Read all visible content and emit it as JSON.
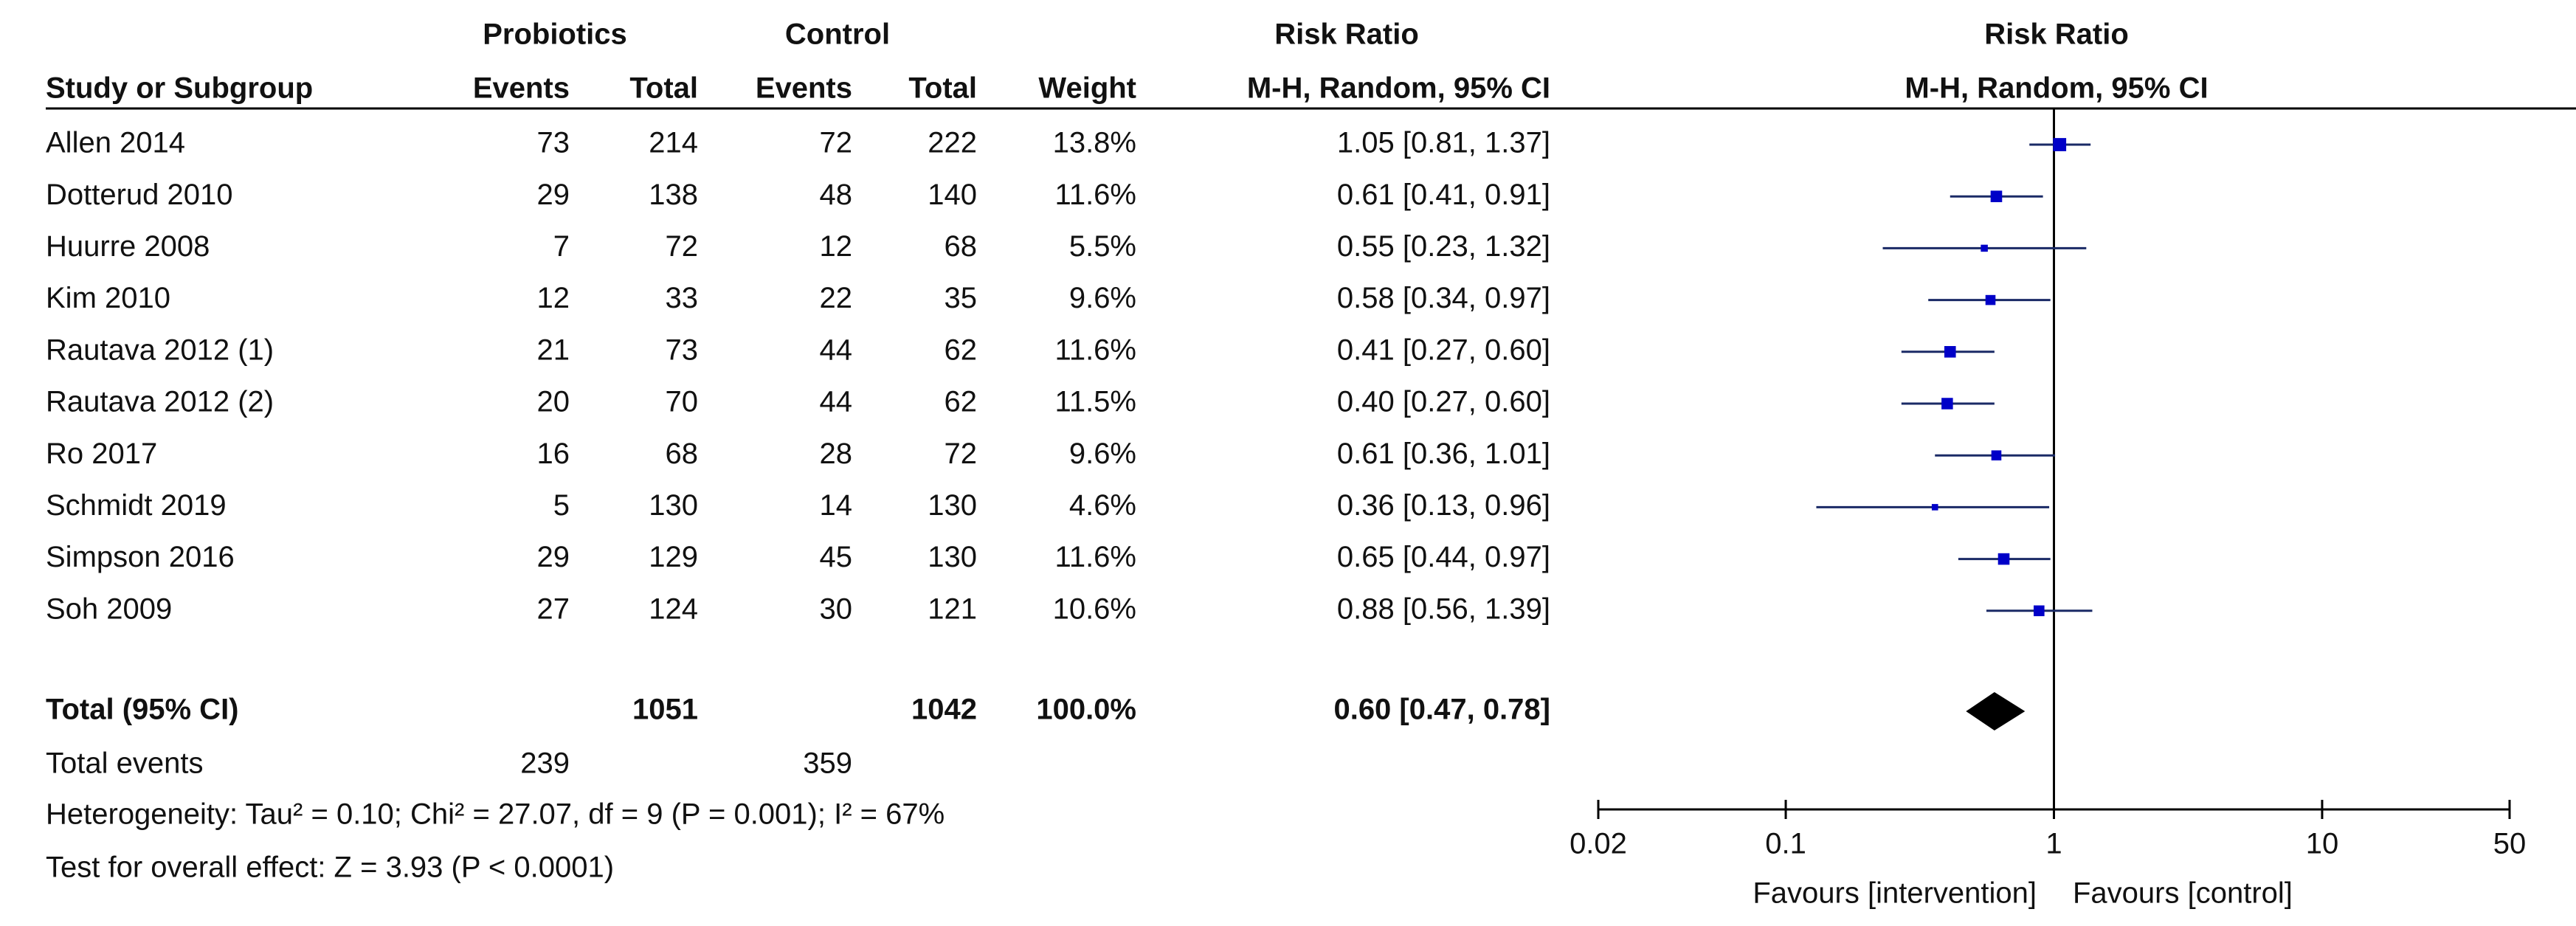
{
  "chart_data": {
    "type": "forest",
    "header": {
      "probiotics": "Probiotics",
      "control": "Control",
      "risk_ratio_table": "Risk Ratio",
      "risk_ratio_plot": "Risk Ratio",
      "study": "Study or Subgroup",
      "p_events": "Events",
      "p_total": "Total",
      "c_events": "Events",
      "c_total": "Total",
      "weight": "Weight",
      "method_table": "M-H, Random, 95% CI",
      "method_plot": "M-H, Random, 95% CI"
    },
    "studies": [
      {
        "study": "Allen 2014",
        "p_events": 73,
        "p_total": 214,
        "c_events": 72,
        "c_total": 222,
        "weight": 13.8,
        "weight_label": "13.8%",
        "ci_label": "1.05 [0.81, 1.37]",
        "rr": 1.05,
        "lo": 0.81,
        "hi": 1.37
      },
      {
        "study": "Dotterud 2010",
        "p_events": 29,
        "p_total": 138,
        "c_events": 48,
        "c_total": 140,
        "weight": 11.6,
        "weight_label": "11.6%",
        "ci_label": "0.61 [0.41, 0.91]",
        "rr": 0.61,
        "lo": 0.41,
        "hi": 0.91
      },
      {
        "study": "Huurre 2008",
        "p_events": 7,
        "p_total": 72,
        "c_events": 12,
        "c_total": 68,
        "weight": 5.5,
        "weight_label": "5.5%",
        "ci_label": "0.55 [0.23, 1.32]",
        "rr": 0.55,
        "lo": 0.23,
        "hi": 1.32
      },
      {
        "study": "Kim 2010",
        "p_events": 12,
        "p_total": 33,
        "c_events": 22,
        "c_total": 35,
        "weight": 9.6,
        "weight_label": "9.6%",
        "ci_label": "0.58 [0.34, 0.97]",
        "rr": 0.58,
        "lo": 0.34,
        "hi": 0.97
      },
      {
        "study": "Rautava 2012 (1)",
        "p_events": 21,
        "p_total": 73,
        "c_events": 44,
        "c_total": 62,
        "weight": 11.6,
        "weight_label": "11.6%",
        "ci_label": "0.41 [0.27, 0.60]",
        "rr": 0.41,
        "lo": 0.27,
        "hi": 0.6
      },
      {
        "study": "Rautava 2012 (2)",
        "p_events": 20,
        "p_total": 70,
        "c_events": 44,
        "c_total": 62,
        "weight": 11.5,
        "weight_label": "11.5%",
        "ci_label": "0.40 [0.27, 0.60]",
        "rr": 0.4,
        "lo": 0.27,
        "hi": 0.6
      },
      {
        "study": "Ro 2017",
        "p_events": 16,
        "p_total": 68,
        "c_events": 28,
        "c_total": 72,
        "weight": 9.6,
        "weight_label": "9.6%",
        "ci_label": "0.61 [0.36, 1.01]",
        "rr": 0.61,
        "lo": 0.36,
        "hi": 1.01
      },
      {
        "study": "Schmidt 2019",
        "p_events": 5,
        "p_total": 130,
        "c_events": 14,
        "c_total": 130,
        "weight": 4.6,
        "weight_label": "4.6%",
        "ci_label": "0.36 [0.13, 0.96]",
        "rr": 0.36,
        "lo": 0.13,
        "hi": 0.96
      },
      {
        "study": "Simpson 2016",
        "p_events": 29,
        "p_total": 129,
        "c_events": 45,
        "c_total": 130,
        "weight": 11.6,
        "weight_label": "11.6%",
        "ci_label": "0.65 [0.44, 0.97]",
        "rr": 0.65,
        "lo": 0.44,
        "hi": 0.97
      },
      {
        "study": "Soh 2009",
        "p_events": 27,
        "p_total": 124,
        "c_events": 30,
        "c_total": 121,
        "weight": 10.6,
        "weight_label": "10.6%",
        "ci_label": "0.88 [0.56, 1.39]",
        "rr": 0.88,
        "lo": 0.56,
        "hi": 1.39
      }
    ],
    "total": {
      "study": "Total (95% CI)",
      "p_total": 1051,
      "c_total": 1042,
      "weight_label": "100.0%",
      "ci_label": "0.60 [0.47, 0.78]",
      "rr": 0.6,
      "lo": 0.47,
      "hi": 0.78
    },
    "total_events": {
      "label": "Total events",
      "p_events": 239,
      "c_events": 359
    },
    "heterogeneity": "Heterogeneity: Tau² = 0.10; Chi² = 27.07, df = 9 (P = 0.001); I² = 67%",
    "overall_effect": "Test for overall effect: Z = 3.93 (P < 0.0001)",
    "log_scale": true,
    "xlim": [
      0.02,
      50
    ],
    "xticks": [
      0.02,
      0.1,
      1,
      10,
      50
    ],
    "xlabel_left": "Favours [intervention]",
    "xlabel_right": "Favours [control]",
    "marker_color": "#0000c8",
    "line_color": "#1a2a66",
    "diamond_color": "#000000"
  }
}
